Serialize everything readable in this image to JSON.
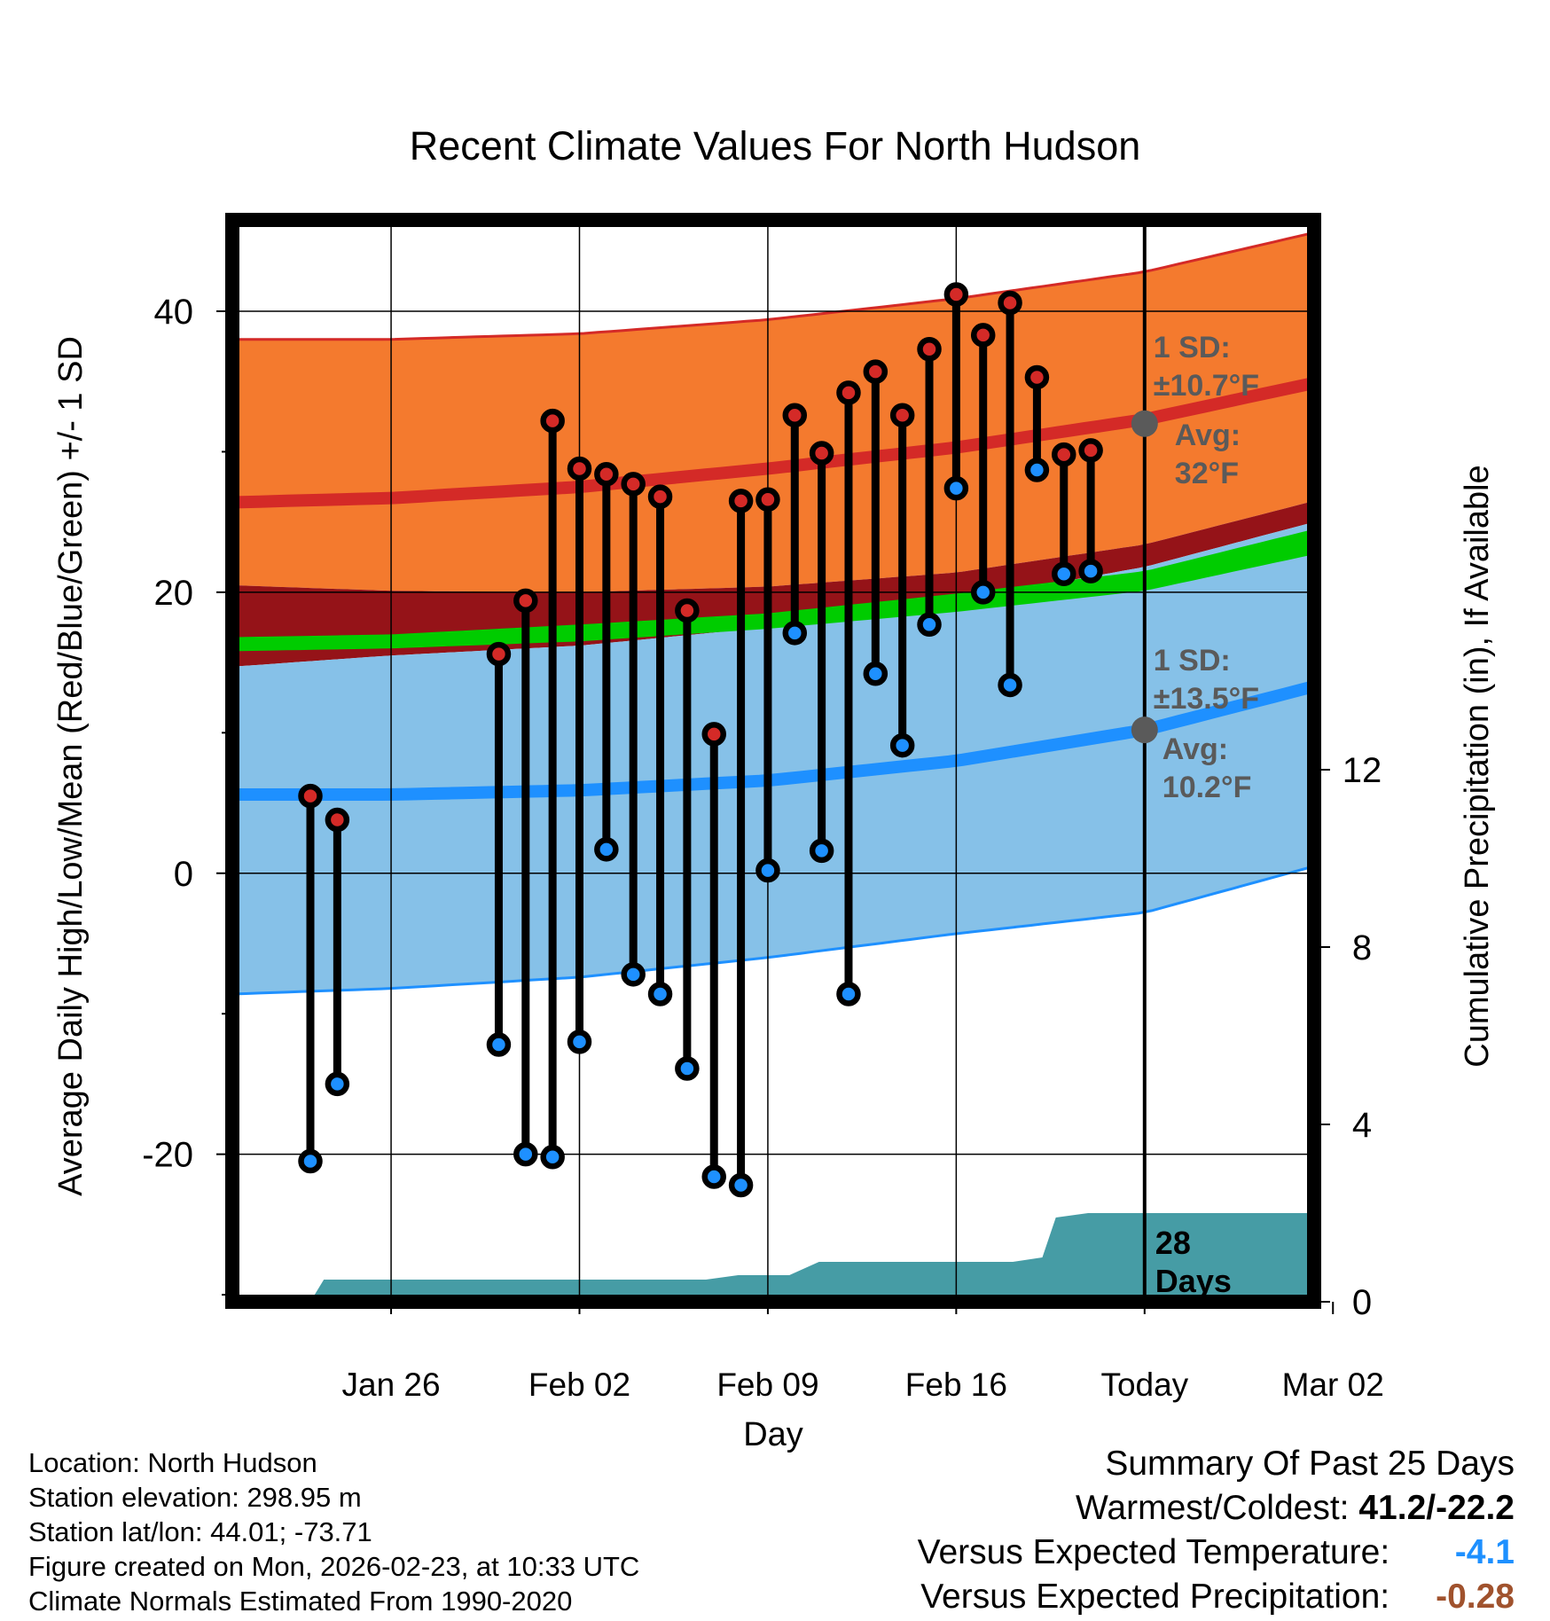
{
  "chart_data": {
    "type": "line",
    "title": "Recent Climate Values For North Hudson",
    "xlabel": "Day",
    "ylabel": "Average Daily High/Low/Mean (Red/Blue/Green) +/- 1 SD",
    "y2label": "Cumulative Precipitation (in), If Available",
    "x_range_days": [
      -2.9,
      37.3
    ],
    "ylim": [
      -30.5,
      46.5
    ],
    "y2lim": [
      0,
      24.4
    ],
    "x_ticks": [
      {
        "day": 3,
        "label": "Jan 26"
      },
      {
        "day": 10,
        "label": "Feb 02"
      },
      {
        "day": 17,
        "label": "Feb 09"
      },
      {
        "day": 24,
        "label": "Feb 16"
      },
      {
        "day": 31,
        "label": "Today"
      },
      {
        "day": 38,
        "label": "Mar 02"
      }
    ],
    "y_ticks": [
      {
        "v": 40,
        "label": "40"
      },
      {
        "v": 20,
        "label": "20"
      },
      {
        "v": 0,
        "label": "0"
      },
      {
        "v": -20,
        "label": "-20"
      }
    ],
    "y_minor_ticks": [
      30,
      10,
      -10,
      -30
    ],
    "y2_ticks": [
      {
        "v": 0,
        "label": "0"
      },
      {
        "v": 4,
        "label": "4"
      },
      {
        "v": 8,
        "label": "8"
      },
      {
        "v": 12,
        "label": "12"
      }
    ],
    "today_day": 31,
    "normals": {
      "days": [
        -2.9,
        3,
        10,
        17,
        24,
        31,
        37.3
      ],
      "high_mean": [
        26.4,
        26.7,
        27.5,
        28.8,
        30.3,
        32.3,
        34.9
      ],
      "high_upper_sd": [
        38.0,
        38.0,
        38.4,
        39.4,
        40.9,
        42.8,
        45.6
      ],
      "high_lower_sd": [
        20.5,
        20.1,
        20.0,
        20.4,
        21.4,
        23.4,
        26.5
      ],
      "low_mean": [
        5.6,
        5.6,
        5.9,
        6.6,
        8.0,
        10.2,
        13.3
      ],
      "low_upper_sd": [
        14.7,
        15.5,
        16.2,
        17.5,
        19.4,
        21.8,
        25.0
      ],
      "low_lower_sd": [
        -8.6,
        -8.2,
        -7.4,
        -6.0,
        -4.3,
        -2.8,
        0.5
      ],
      "mean_upper": [
        16.8,
        17.0,
        17.7,
        18.5,
        19.9,
        21.5,
        24.5
      ],
      "mean_lower": [
        15.8,
        16.0,
        16.5,
        17.4,
        18.6,
        20.1,
        22.7
      ],
      "colors": {
        "high_band": "#f47a2e",
        "high_line": "#d42a27",
        "overlap_band": "#951318",
        "low_band": "#86c1e8",
        "low_line": "#1e90ff",
        "mean_band": "#00cc00",
        "precip": "#469ca5"
      }
    },
    "annotations": {
      "high_sd": [
        "1 SD:",
        "±10.7°F"
      ],
      "high_avg": [
        "Avg:",
        "32°F"
      ],
      "low_sd": [
        "1 SD:",
        "±13.5°F"
      ],
      "low_avg": [
        "Avg:",
        "10.2°F"
      ],
      "high_avg_value": 32,
      "low_avg_value": 10.2,
      "annotation_color": "#5a5a5a",
      "precip_days": [
        "28",
        "Days"
      ]
    },
    "observations": [
      {
        "day": 0,
        "high": 5.5,
        "low": -20.5
      },
      {
        "day": 1,
        "high": 3.8,
        "low": -15.0
      },
      {
        "day": 7,
        "high": 15.6,
        "low": -12.2
      },
      {
        "day": 8,
        "high": 19.4,
        "low": -20.0
      },
      {
        "day": 9,
        "high": 32.2,
        "low": -20.2
      },
      {
        "day": 10,
        "high": 28.8,
        "low": -12.0
      },
      {
        "day": 11,
        "high": 28.4,
        "low": 1.7
      },
      {
        "day": 12,
        "high": 27.7,
        "low": -7.2
      },
      {
        "day": 13,
        "high": 26.8,
        "low": -8.6
      },
      {
        "day": 14,
        "high": 18.7,
        "low": -13.9
      },
      {
        "day": 15,
        "high": 9.9,
        "low": -21.6
      },
      {
        "day": 16,
        "high": 26.5,
        "low": -22.2
      },
      {
        "day": 17,
        "high": 26.6,
        "low": 0.2
      },
      {
        "day": 18,
        "high": 32.6,
        "low": 17.1
      },
      {
        "day": 19,
        "high": 29.9,
        "low": 1.6
      },
      {
        "day": 20,
        "high": 34.2,
        "low": -8.6
      },
      {
        "day": 21,
        "high": 35.7,
        "low": 14.2
      },
      {
        "day": 22,
        "high": 32.6,
        "low": 9.1
      },
      {
        "day": 23,
        "high": 37.3,
        "low": 17.7
      },
      {
        "day": 24,
        "high": 41.2,
        "low": 27.4
      },
      {
        "day": 25,
        "high": 38.3,
        "low": 20.0
      },
      {
        "day": 26,
        "high": 40.6,
        "low": 13.4
      },
      {
        "day": 27,
        "high": 35.3,
        "low": 28.7
      },
      {
        "day": 28,
        "high": 29.8,
        "low": 21.3
      },
      {
        "day": 29,
        "high": 30.1,
        "low": 21.5
      }
    ],
    "precipitation_cumulative": {
      "days": [
        -2.9,
        -1.4,
        0,
        0.5,
        2.3,
        5.4,
        8.8,
        11.7,
        14.7,
        15.9,
        17.8,
        18.9,
        20.5,
        24.6,
        26.1,
        27.2,
        27.7,
        28.9,
        37.3
      ],
      "values": [
        0,
        0,
        0,
        0.5,
        0.5,
        0.5,
        0.5,
        0.5,
        0.5,
        0.6,
        0.6,
        0.9,
        0.9,
        0.9,
        0.9,
        1.0,
        1.9,
        2.0,
        2.0
      ]
    }
  },
  "footer_left": [
    "Location: North Hudson",
    "Station elevation: 298.95 m",
    "Station lat/lon: 44.01; -73.71",
    "Figure created on Mon, 2026-02-23, at 10:33 UTC",
    "Climate Normals Estimated From 1990-2020"
  ],
  "summary": {
    "title": "Summary Of Past 25 Days",
    "warm_cold_label": "Warmest/Coldest:",
    "warm_cold_value": "41.2/-22.2",
    "temp_label": "Versus Expected Temperature:",
    "temp_value": "-4.1",
    "temp_color": "#1e90ff",
    "precip_label": "Versus Expected Precipitation:",
    "precip_value": "-0.28",
    "precip_color": "#a0522d"
  }
}
